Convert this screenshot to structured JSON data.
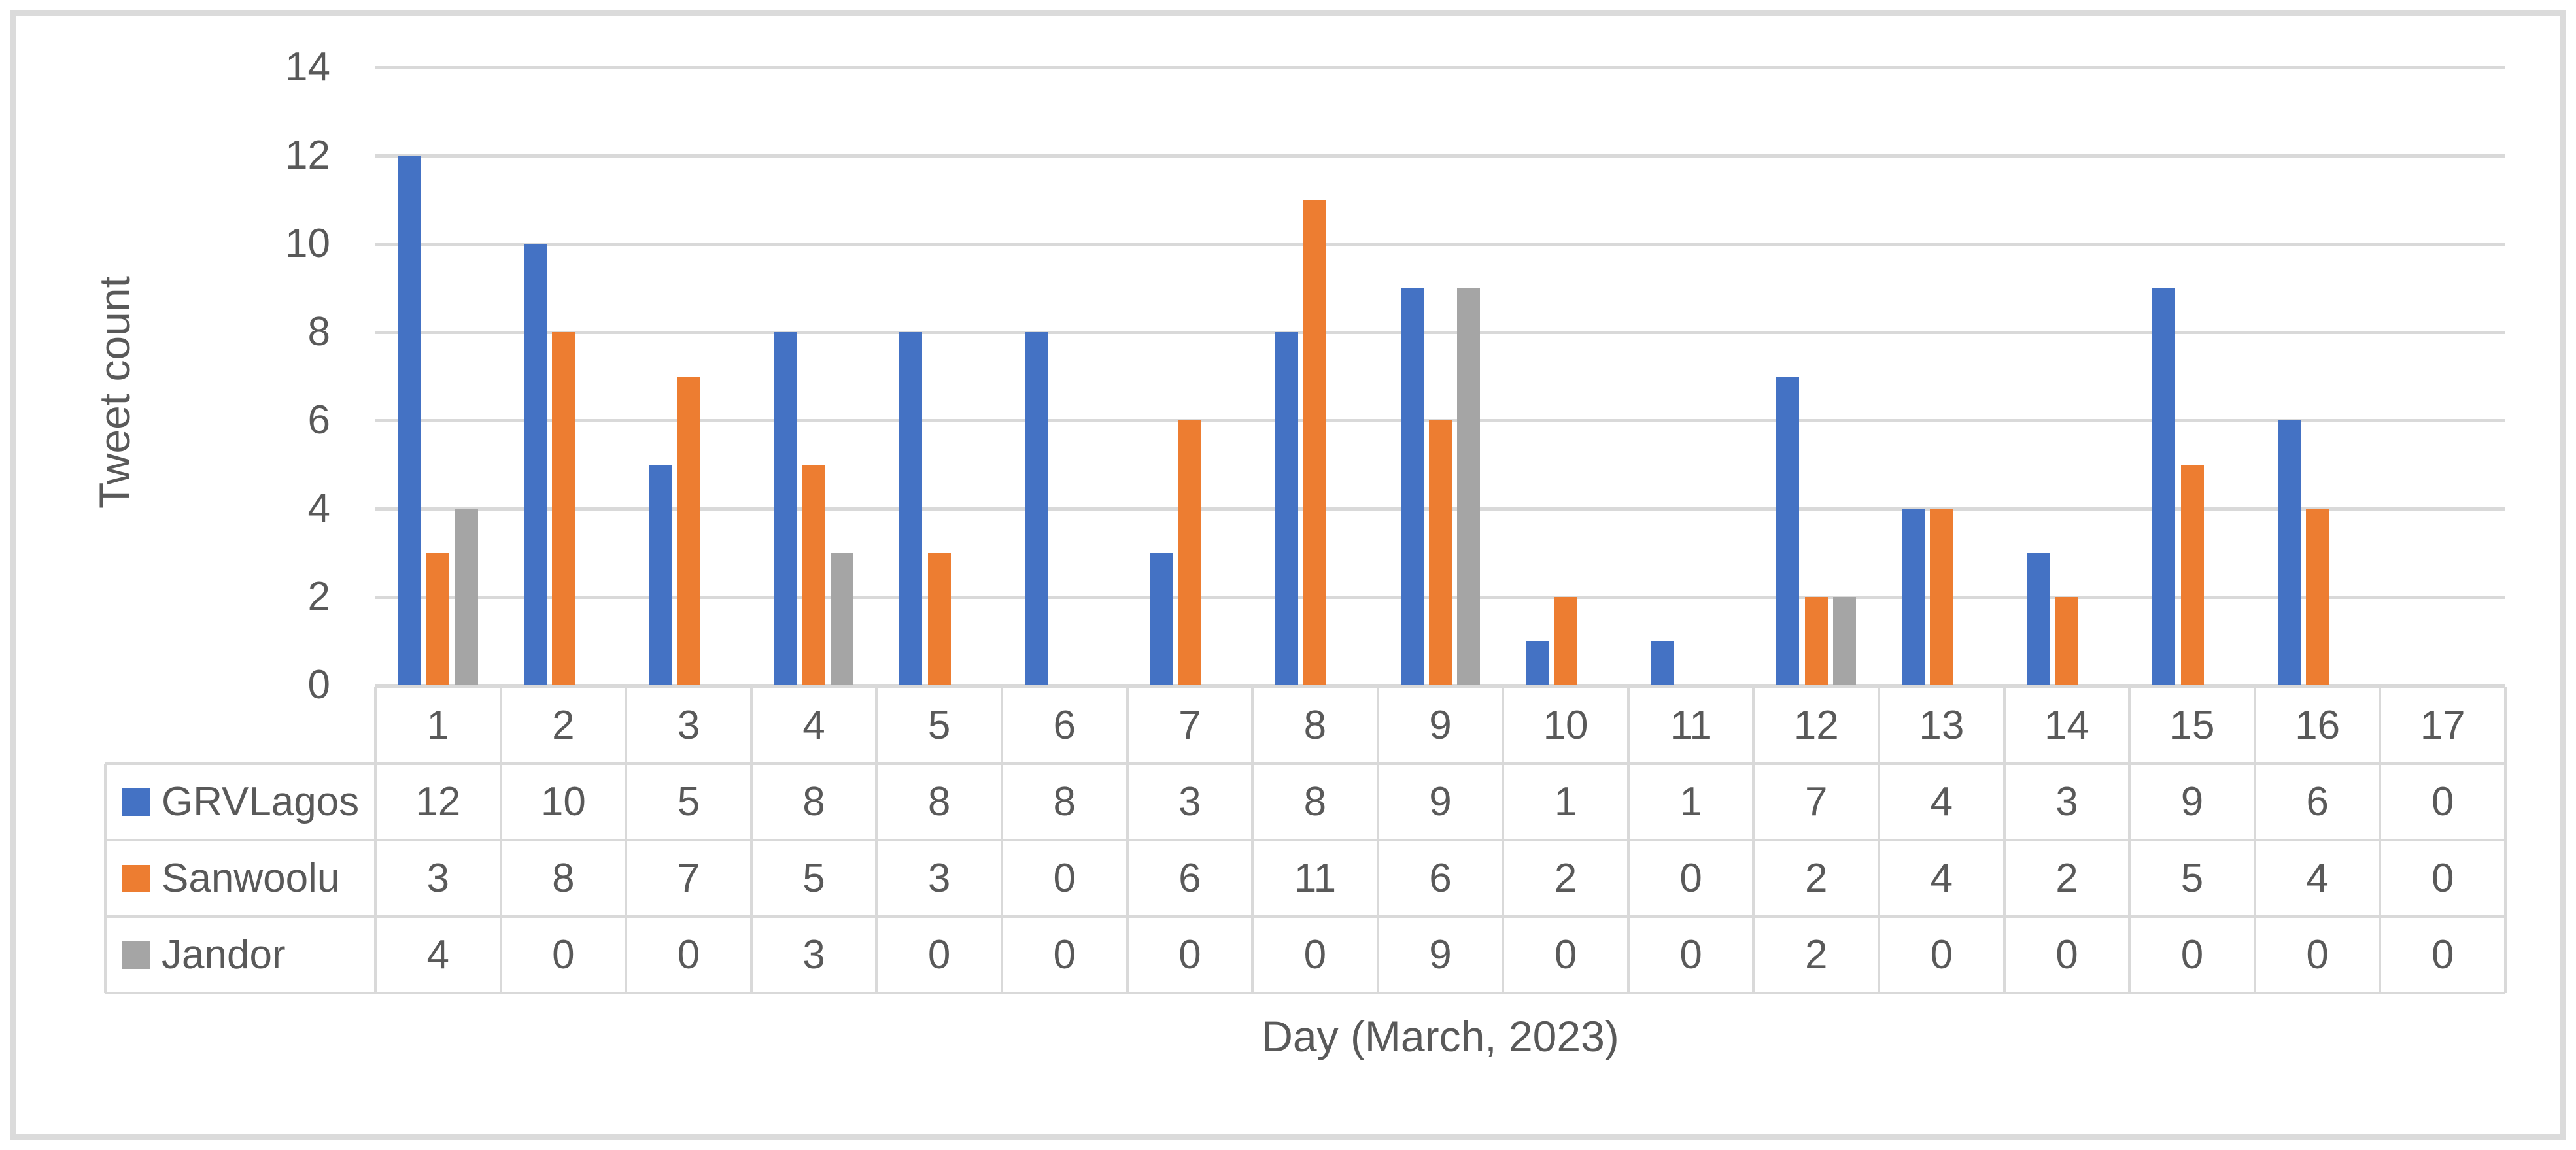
{
  "chart_data": {
    "type": "bar",
    "title": "",
    "ylabel": "Tweet count",
    "xlabel": "Day (March, 2023)",
    "categories": [
      "1",
      "2",
      "3",
      "4",
      "5",
      "6",
      "7",
      "8",
      "9",
      "10",
      "11",
      "12",
      "13",
      "14",
      "15",
      "16",
      "17"
    ],
    "series": [
      {
        "name": "GRVLagos",
        "color": "#4472C4",
        "values": [
          12,
          10,
          5,
          8,
          8,
          8,
          3,
          8,
          9,
          1,
          1,
          7,
          4,
          3,
          9,
          6,
          0
        ]
      },
      {
        "name": "Sanwoolu",
        "color": "#ED7D31",
        "values": [
          3,
          8,
          7,
          5,
          3,
          0,
          6,
          11,
          6,
          2,
          0,
          2,
          4,
          2,
          5,
          4,
          0
        ]
      },
      {
        "name": "Jandor",
        "color": "#A5A5A5",
        "values": [
          4,
          0,
          0,
          3,
          0,
          0,
          0,
          0,
          9,
          0,
          0,
          2,
          0,
          0,
          0,
          0,
          0
        ]
      }
    ],
    "y_ticks": [
      0,
      2,
      4,
      6,
      8,
      10,
      12,
      14
    ],
    "ylim": [
      0,
      14
    ],
    "grid": true,
    "legend_position": "table-rows-left",
    "gridline_color": "#D9D9D9",
    "text_color": "#595959"
  }
}
